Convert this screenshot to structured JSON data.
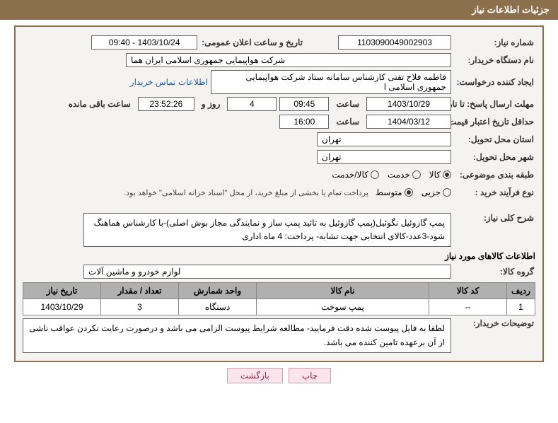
{
  "header": {
    "title": "جزئیات اطلاعات نیاز"
  },
  "need_number": {
    "label": "شماره نیاز:",
    "value": "1103090049002903"
  },
  "announce": {
    "label": "تاریخ و ساعت اعلان عمومی:",
    "value": "1403/10/24 - 09:40"
  },
  "buyer_org": {
    "label": "نام دستگاه خریدار:",
    "value": "شرکت هواپیمایی جمهوری اسلامی ایران هما"
  },
  "requester": {
    "label": "ایجاد کننده درخواست:",
    "value": "فاطمه فلاح تفتی کارشناس سامانه ستاد شرکت هواپیمایی جمهوری اسلامی ا",
    "contact_link": "اطلاعات تماس خریدار"
  },
  "deadline": {
    "label": "مهلت ارسال پاسخ: تا تاریخ:",
    "date": "1403/10/29",
    "time_label": "ساعت",
    "time": "09:45",
    "days": "4",
    "days_label": "روز و",
    "countdown": "23:52:26",
    "remain_label": "ساعت باقی مانده"
  },
  "validity": {
    "label": "حداقل تاریخ اعتبار قیمت: تا تاریخ:",
    "date": "1404/03/12",
    "time_label": "ساعت",
    "time": "16:00"
  },
  "province": {
    "label": "استان محل تحویل:",
    "value": "تهران"
  },
  "city": {
    "label": "شهر محل تحویل:",
    "value": "تهران"
  },
  "classification": {
    "label": "طبقه بندی موضوعی:",
    "options": [
      {
        "label": "کالا",
        "checked": true
      },
      {
        "label": "خدمت",
        "checked": false
      },
      {
        "label": "کالا/خدمت",
        "checked": false
      }
    ]
  },
  "purchase_process": {
    "label": "نوع فرآیند خرید :",
    "options": [
      {
        "label": "جزیی",
        "checked": false
      },
      {
        "label": "متوسط",
        "checked": true
      }
    ],
    "note": "پرداخت تمام یا بخشی از مبلغ خرید، از محل \"اسناد خزانه اسلامی\" خواهد بود."
  },
  "description": {
    "label": "شرح کلی نیاز:",
    "text": "پمپ گازوئیل نگوئیل(پمپ گازوئیل به تائید پمپ ساز و نمایندگی مجاز بوش اصلی)-با کارشناس هماهنگ شود-3عدد-کالای انتخابی جهت تشابه- پرداخت: 4 ماه اداری"
  },
  "items_section": "اطلاعات کالاهای مورد نیاز",
  "goods_group": {
    "label": "گروه کالا:",
    "value": "لوازم خودرو و ماشین آلات"
  },
  "table": {
    "headers": [
      "ردیف",
      "کد کالا",
      "نام کالا",
      "واحد شمارش",
      "تعداد / مقدار",
      "تاریخ نیاز"
    ],
    "rows": [
      [
        "1",
        "--",
        "پمپ سوخت",
        "دستگاه",
        "3",
        "1403/10/29"
      ]
    ]
  },
  "buyer_notes": {
    "label": "توضیحات خریدار:",
    "text": "لطفا به فایل پیوست شده دقت فرمایید- مطالعه شرایط پیوست الزامی می باشد و درصورت رعایت نکردن عواقب ناشی از آن برعهده تامین کننده می باشد."
  },
  "buttons": {
    "print": "چاپ",
    "back": "بازگشت"
  }
}
